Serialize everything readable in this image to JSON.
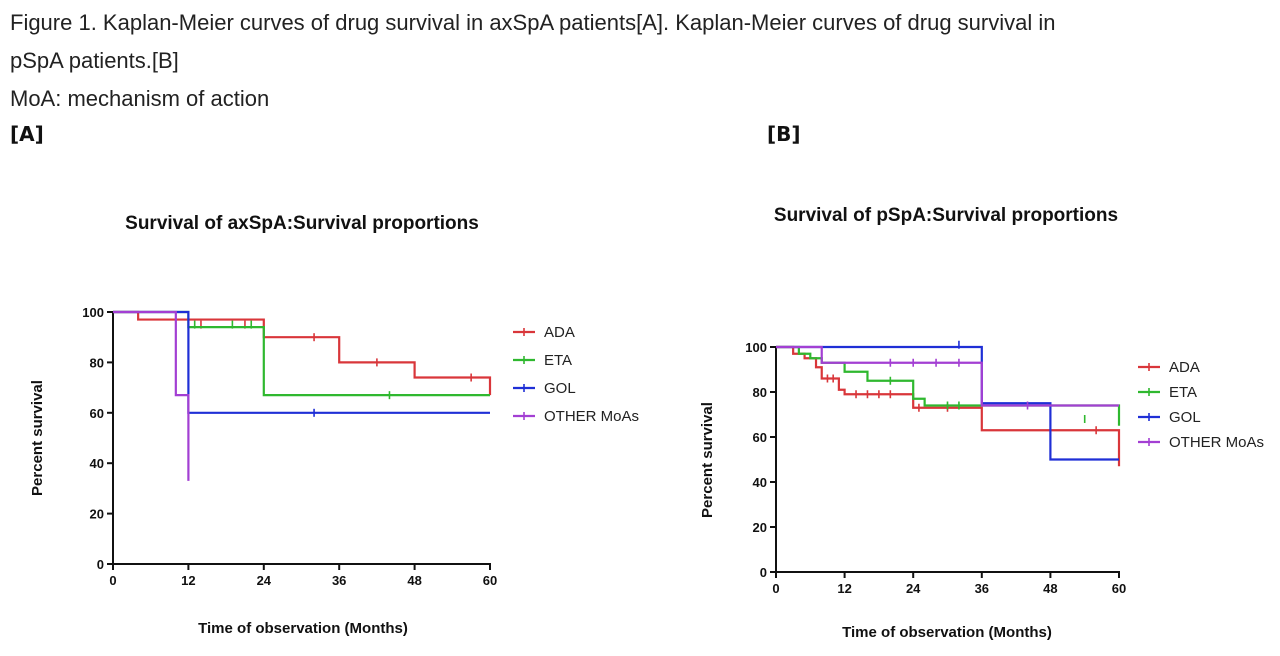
{
  "caption": {
    "line1": "Figure 1. Kaplan-Meier curves of drug survival in axSpA patients[A]. Kaplan-Meier curves of drug survival in",
    "line2": "pSpA patients.[B]",
    "line3": "MoA: mechanism of action"
  },
  "panels": {
    "a": "[A]",
    "b": "[B]"
  },
  "colors": {
    "ADA": "#d9363a",
    "ETA": "#2fb82f",
    "GOL": "#1f2fd6",
    "OTHER MoAs": "#a33fd3"
  },
  "chart_data": [
    {
      "type": "line",
      "subtype": "kaplan-meier-step",
      "title": "Survival of axSpA:Survival proportions",
      "xlabel": "Time of observation (Months)",
      "ylabel": "Percent survival",
      "xlim": [
        0,
        60
      ],
      "ylim": [
        0,
        100
      ],
      "xticks": [
        0,
        12,
        24,
        36,
        48,
        60
      ],
      "yticks": [
        0,
        20,
        40,
        60,
        80,
        100
      ],
      "legend_position": "right",
      "series": [
        {
          "name": "ADA",
          "steps": [
            [
              0,
              100
            ],
            [
              4,
              97
            ],
            [
              24,
              90
            ],
            [
              36,
              80
            ],
            [
              48,
              74
            ],
            [
              60,
              74
            ],
            [
              60,
              67
            ]
          ],
          "censors": [
            [
              14,
              95
            ],
            [
              21,
              95
            ],
            [
              32,
              90
            ],
            [
              42,
              80
            ],
            [
              57,
              74
            ]
          ]
        },
        {
          "name": "ETA",
          "steps": [
            [
              0,
              100
            ],
            [
              12,
              94
            ],
            [
              24,
              67
            ],
            [
              60,
              67
            ]
          ],
          "censors": [
            [
              13,
              95
            ],
            [
              19,
              95
            ],
            [
              22,
              95
            ],
            [
              44,
              67
            ]
          ]
        },
        {
          "name": "GOL",
          "steps": [
            [
              0,
              100
            ],
            [
              12,
              60
            ],
            [
              60,
              60
            ]
          ],
          "censors": [
            [
              32,
              60
            ]
          ]
        },
        {
          "name": "OTHER MoAs",
          "steps": [
            [
              0,
              100
            ],
            [
              10,
              67
            ],
            [
              12,
              33
            ]
          ],
          "censors": []
        }
      ]
    },
    {
      "type": "line",
      "subtype": "kaplan-meier-step",
      "title": "Survival of pSpA:Survival proportions",
      "xlabel": "Time of observation (Months)",
      "ylabel": "Percent survival",
      "xlim": [
        0,
        60
      ],
      "ylim": [
        0,
        100
      ],
      "xticks": [
        0,
        12,
        24,
        36,
        48,
        60
      ],
      "yticks": [
        0,
        20,
        40,
        60,
        80,
        100
      ],
      "legend_position": "right",
      "series": [
        {
          "name": "ADA",
          "steps": [
            [
              0,
              100
            ],
            [
              3,
              97
            ],
            [
              5,
              95
            ],
            [
              7,
              91
            ],
            [
              8,
              86
            ],
            [
              11,
              81
            ],
            [
              12,
              79
            ],
            [
              24,
              73
            ],
            [
              36,
              63
            ],
            [
              60,
              63
            ],
            [
              60,
              47
            ]
          ],
          "censors": [
            [
              9,
              86
            ],
            [
              10,
              86
            ],
            [
              14,
              79
            ],
            [
              16,
              79
            ],
            [
              18,
              79
            ],
            [
              20,
              79
            ],
            [
              25,
              73
            ],
            [
              30,
              73
            ],
            [
              56,
              63
            ]
          ]
        },
        {
          "name": "ETA",
          "steps": [
            [
              0,
              100
            ],
            [
              4,
              97
            ],
            [
              6,
              95
            ],
            [
              8,
              93
            ],
            [
              12,
              89
            ],
            [
              16,
              85
            ],
            [
              24,
              77
            ],
            [
              26,
              74
            ],
            [
              60,
              68
            ],
            [
              60,
              65
            ]
          ],
          "censors": [
            [
              20,
              85
            ],
            [
              30,
              74
            ],
            [
              32,
              74
            ],
            [
              54,
              68
            ]
          ]
        },
        {
          "name": "GOL",
          "steps": [
            [
              0,
              100
            ],
            [
              36,
              100
            ],
            [
              36,
              75
            ],
            [
              48,
              50
            ],
            [
              60,
              50
            ]
          ],
          "censors": [
            [
              32,
              101
            ]
          ]
        },
        {
          "name": "OTHER MoAs",
          "steps": [
            [
              0,
              100
            ],
            [
              8,
              93
            ],
            [
              36,
              93
            ],
            [
              36,
              74
            ],
            [
              60,
              74
            ]
          ],
          "censors": [
            [
              20,
              93
            ],
            [
              24,
              93
            ],
            [
              28,
              93
            ],
            [
              32,
              93
            ],
            [
              44,
              74
            ]
          ]
        }
      ]
    }
  ]
}
